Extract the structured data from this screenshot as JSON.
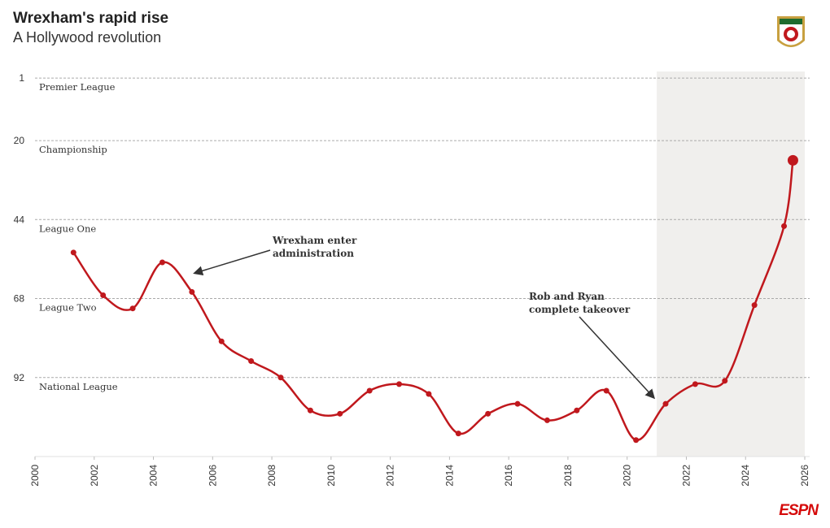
{
  "chart_data": {
    "type": "line",
    "title": "Wrexham's rapid rise",
    "subtitle": "A Hollywood revolution",
    "x": [
      2001.3,
      2002.3,
      2003.3,
      2004.3,
      2005.3,
      2006.3,
      2007.3,
      2008.3,
      2009.3,
      2010.3,
      2011.3,
      2012.3,
      2013.3,
      2014.3,
      2015.3,
      2016.3,
      2017.3,
      2018.3,
      2019.3,
      2020.3,
      2021.3,
      2022.3,
      2023.3,
      2024.3,
      2025.3,
      2025.6
    ],
    "series": [
      {
        "name": "Wrexham",
        "color": "#c0181d",
        "values": [
          54,
          67,
          71,
          57,
          66,
          81,
          87,
          92,
          102,
          103,
          96,
          94,
          97,
          109,
          103,
          100,
          105,
          102,
          96,
          111,
          100,
          94,
          93,
          70,
          46,
          26
        ]
      }
    ],
    "xlim": [
      2000,
      2026
    ],
    "xticks": [
      2000,
      2002,
      2004,
      2006,
      2008,
      2010,
      2012,
      2014,
      2016,
      2018,
      2020,
      2022,
      2024,
      2026
    ],
    "ylim": [
      116,
      -1
    ],
    "yticks": [
      1,
      20,
      44,
      68,
      92
    ],
    "league_labels": [
      "Premier League",
      "Championship",
      "League One",
      "League Two",
      "National League"
    ],
    "highlight_range": [
      2021,
      2026
    ],
    "highlight_last": true,
    "grid": true,
    "annotations": [
      {
        "lines": [
          "Wrexham enter",
          "administration"
        ]
      },
      {
        "lines": [
          "Rob and Ryan",
          "complete takeover"
        ]
      }
    ],
    "source_logo": "ESPN"
  }
}
